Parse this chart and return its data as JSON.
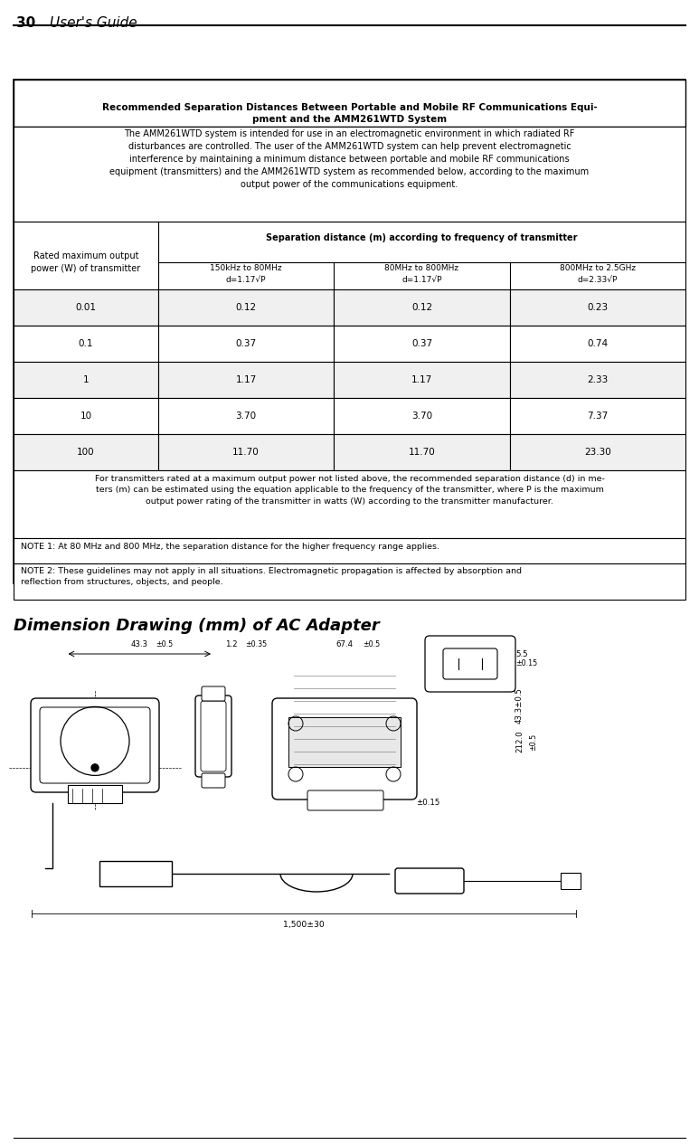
{
  "page_number": "30",
  "page_title": "User’s Guide",
  "table_title": "Recommended Separation Distances Between Portable and Mobile RF Communications Equi-\npment and the AMM261WTD System",
  "description": "The AMM261WTD system is intended for use in an electromagnetic environment in which radiated RF\ndisturbances are controlled. The user of the AMM261WTD system can help prevent electromagnetic\ninterference by maintaining a minimum distance between portable and mobile RF communications\nequipment (transmitters) and the AMM261WTD system as recommended below, according to the maximum\noutput power of the communications equipment.",
  "col_header_left": "Rated maximum output\npower (W) of transmitter",
  "col_header_center": "Separation distance (m) according to frequency of transmitter",
  "sub_col_1": "150kHz to 80MHz\nd=1.17√P",
  "sub_col_2": "80MHz to 800MHz\nd=1.17√P",
  "sub_col_3": "800MHz to 2.5GHz\nd=2.33√P",
  "data_rows": [
    [
      "0.01",
      "0.12",
      "0.12",
      "0.23"
    ],
    [
      "0.1",
      "0.37",
      "0.37",
      "0.74"
    ],
    [
      "1",
      "1.17",
      "1.17",
      "2.33"
    ],
    [
      "10",
      "3.70",
      "3.70",
      "7.37"
    ],
    [
      "100",
      "11.70",
      "11.70",
      "23.30"
    ]
  ],
  "footer_text": "For transmitters rated at a maximum output power not listed above, the recommended separation distance (d) in me-\nters (m) can be estimated using the equation applicable to the frequency of the transmitter, where P is the maximum\noutput power rating of the transmitter in watts (W) according to the transmitter manufacturer.",
  "note1": "NOTE 1: At 80 MHz and 800 MHz, the separation distance for the higher frequency range applies.",
  "note2": "NOTE 2: These guidelines may not apply in all situations. Electromagnetic propagation is affected by absorption and\nreflection from structures, objects, and people.",
  "section_title": "Dimension Drawing (mm) of AC Adapter",
  "bg_color": "#ffffff",
  "border_color": "#000000",
  "header_bg": "#ffffff",
  "row_alt_bg": "#f0f0f0"
}
